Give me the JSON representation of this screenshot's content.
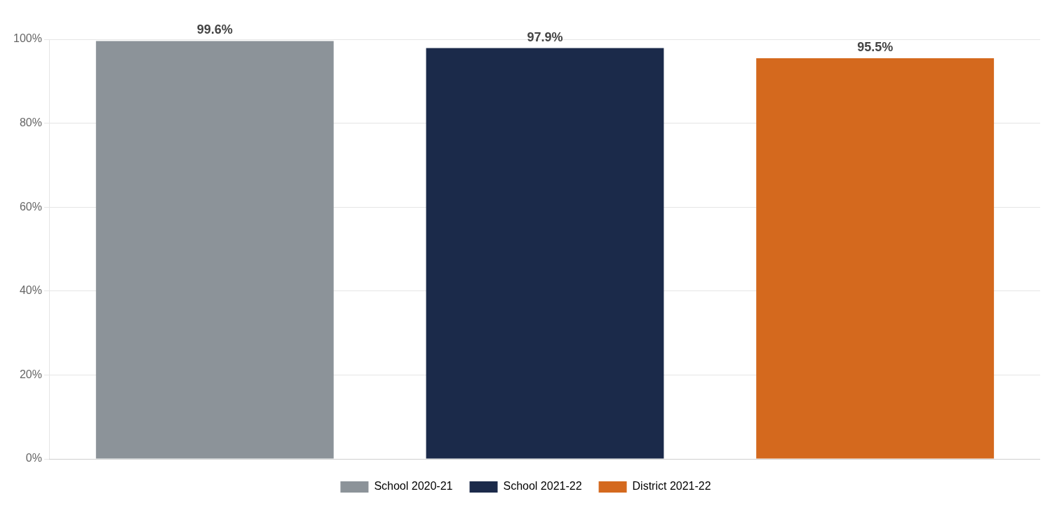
{
  "chart_data": {
    "type": "bar",
    "categories": [
      "School 2020-21",
      "School 2021-22",
      "District 2021-22"
    ],
    "values": [
      99.6,
      97.9,
      95.5
    ],
    "value_labels": [
      "99.6%",
      "97.9%",
      "95.5%"
    ],
    "colors": [
      "#8C9399",
      "#1B2A4A",
      "#D4691E"
    ],
    "ylim": [
      0,
      100
    ],
    "yticks": [
      {
        "value": 0,
        "label": "0%"
      },
      {
        "value": 20,
        "label": "20%"
      },
      {
        "value": 40,
        "label": "40%"
      },
      {
        "value": 60,
        "label": "60%"
      },
      {
        "value": 80,
        "label": "80%"
      },
      {
        "value": 100,
        "label": "100%"
      }
    ],
    "grid": true,
    "legend": "bottom",
    "data_labels": true,
    "tick_labels": "y"
  }
}
